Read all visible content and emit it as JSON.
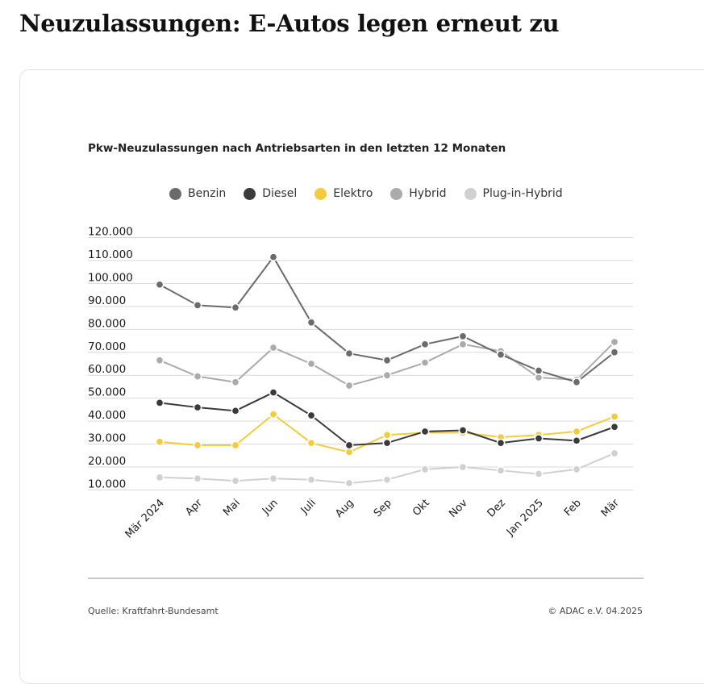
{
  "headline": "Neuzulassungen: E-Autos legen erneut zu",
  "source": "Quelle: Kraftfahrt-Bundesamt",
  "copyright": "© ADAC e.V. 04.2025",
  "chart_data": {
    "type": "line",
    "title": "Pkw-Neuzulassungen nach Antriebsarten in den letzten 12 Monaten",
    "xlabel": "",
    "ylabel": "",
    "categories": [
      "Mär 2024",
      "Apr",
      "Mai",
      "Jun",
      "Juli",
      "Aug",
      "Sep",
      "Okt",
      "Nov",
      "Dez",
      "Jan 2025",
      "Feb",
      "Mär"
    ],
    "y_ticks": [
      "10.000",
      "20.000",
      "30.000",
      "40.000",
      "50.000",
      "60.000",
      "70.000",
      "80.000",
      "90.000",
      "100.000",
      "110.000",
      "120.000"
    ],
    "ylim": [
      10000,
      120000
    ],
    "grid": true,
    "legend_position": "top",
    "series": [
      {
        "name": "Benzin",
        "color": "#6b6b6b",
        "values": [
          99500,
          90500,
          89500,
          111500,
          83000,
          69500,
          66500,
          73500,
          77000,
          69000,
          62000,
          57000,
          70000
        ]
      },
      {
        "name": "Diesel",
        "color": "#3a3a3a",
        "values": [
          48000,
          46000,
          44500,
          52500,
          42500,
          29500,
          30500,
          35500,
          36000,
          30500,
          32500,
          31500,
          37500
        ]
      },
      {
        "name": "Elektro",
        "color": "#f2cc3d",
        "values": [
          31000,
          29500,
          29500,
          43000,
          30500,
          26500,
          34000,
          35000,
          35000,
          33000,
          34000,
          35500,
          42000
        ]
      },
      {
        "name": "Hybrid",
        "color": "#ababab",
        "values": [
          66500,
          59500,
          57000,
          72000,
          65000,
          55500,
          60000,
          65500,
          73500,
          70500,
          59000,
          58000,
          74500
        ]
      },
      {
        "name": "Plug-in-Hybrid",
        "color": "#d0d0d0",
        "values": [
          15500,
          15000,
          14000,
          15000,
          14500,
          13000,
          14500,
          19000,
          20000,
          18500,
          17000,
          19000,
          26000
        ]
      }
    ]
  }
}
